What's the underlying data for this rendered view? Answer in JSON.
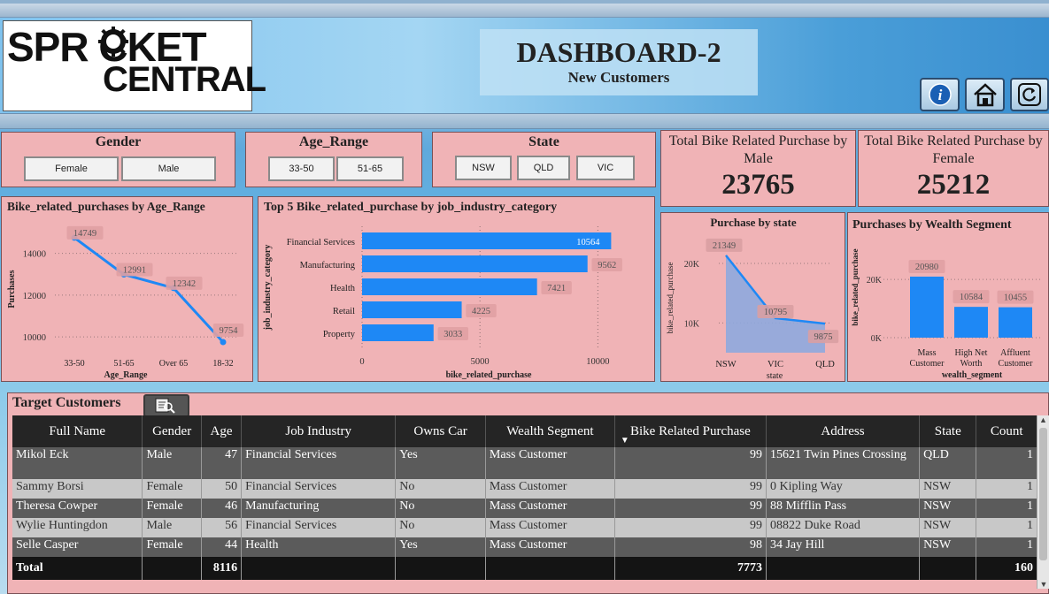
{
  "header": {
    "logo_line1": "SPR   CKET",
    "logo_line2": "CENTRAL",
    "title": "DASHBOARD-2",
    "subtitle": "New Customers",
    "buttons": [
      {
        "label": "i",
        "icon": "info-icon"
      },
      {
        "label": "home",
        "icon": "home-icon"
      },
      {
        "label": "refresh",
        "icon": "refresh-icon"
      }
    ]
  },
  "slicers": {
    "gender": {
      "title": "Gender",
      "options": [
        "Female",
        "Male"
      ]
    },
    "age": {
      "title": "Age_Range",
      "options": [
        "33-50",
        "51-65"
      ]
    },
    "state": {
      "title": "State",
      "options": [
        "NSW",
        "QLD",
        "VIC"
      ]
    }
  },
  "kpis": {
    "male": {
      "label": "Total Bike Related Purchase by Male",
      "value": "23765"
    },
    "female": {
      "label": "Total Bike Related Purchase by Female",
      "value": "25212"
    }
  },
  "chart_data": [
    {
      "type": "line",
      "title": "Bike_related_purchases by Age_Range",
      "xlabel": "Age_Range",
      "ylabel": "Purchases",
      "categories": [
        "33-50",
        "51-65",
        "Over 65",
        "18-32"
      ],
      "values": [
        14749,
        12991,
        12342,
        9754
      ],
      "yticks": [
        "10000",
        "12000",
        "14000"
      ],
      "ylim": [
        9500,
        15000
      ],
      "grid": true
    },
    {
      "type": "bar",
      "title": "Top 5 Bike_related_purchase by job_industry_category",
      "xlabel": "bike_related_purchase",
      "ylabel": "job_industry_category",
      "categories": [
        "Financial Services",
        "Manufacturing",
        "Health",
        "Retail",
        "Property"
      ],
      "values": [
        10564,
        9562,
        7421,
        4225,
        3033
      ],
      "xticks": [
        "0",
        "5000",
        "10000"
      ],
      "xlim": [
        0,
        11000
      ]
    },
    {
      "type": "area",
      "title": "Purchase by state",
      "xlabel": "state",
      "ylabel": "bike_related_purchase",
      "categories": [
        "NSW",
        "VIC",
        "QLD"
      ],
      "values": [
        21349,
        10795,
        9875
      ],
      "yticks": [
        "10K",
        "20K"
      ],
      "ylim": [
        5000,
        24000
      ]
    },
    {
      "type": "bar",
      "title": "Purchases by Wealth Segment",
      "xlabel": "wealth_segment",
      "ylabel": "bike_related_purchase",
      "categories": [
        "Mass Customer",
        "High Net Worth",
        "Affluent Customer"
      ],
      "values": [
        20980,
        10584,
        10455
      ],
      "yticks": [
        "0K",
        "20K"
      ],
      "ylim": [
        0,
        24000
      ]
    }
  ],
  "table": {
    "title": "Target Customers",
    "columns": [
      "Full Name",
      "Gender",
      "Age",
      "Job Industry",
      "Owns Car",
      "Wealth Segment",
      "Bike Related Purchase",
      "Address",
      "State",
      "Count"
    ],
    "rows": [
      [
        "Mikol Eck",
        "Male",
        "47",
        "Financial Services",
        "Yes",
        "Mass Customer",
        "99",
        "15621 Twin Pines Crossing",
        "QLD",
        "1"
      ],
      [
        "Sammy Borsi",
        "Female",
        "50",
        "Financial Services",
        "No",
        "Mass Customer",
        "99",
        "0 Kipling Way",
        "NSW",
        "1"
      ],
      [
        "Theresa Cowper",
        "Female",
        "46",
        "Manufacturing",
        "No",
        "Mass Customer",
        "99",
        "88 Mifflin Pass",
        "NSW",
        "1"
      ],
      [
        "Wylie Huntingdon",
        "Male",
        "56",
        "Financial Services",
        "No",
        "Mass Customer",
        "99",
        "08822 Duke Road",
        "NSW",
        "1"
      ],
      [
        "Selle Casper",
        "Female",
        "44",
        "Health",
        "Yes",
        "Mass Customer",
        "98",
        "34 Jay Hill",
        "NSW",
        "1"
      ]
    ],
    "total": [
      "Total",
      "",
      "8116",
      "",
      "",
      "",
      "7773",
      "",
      "",
      "160"
    ]
  },
  "colors": {
    "panel": "#f0b3b6",
    "bar": "#1e88f5",
    "area": "#8ea8de",
    "table_header": "#252525"
  }
}
